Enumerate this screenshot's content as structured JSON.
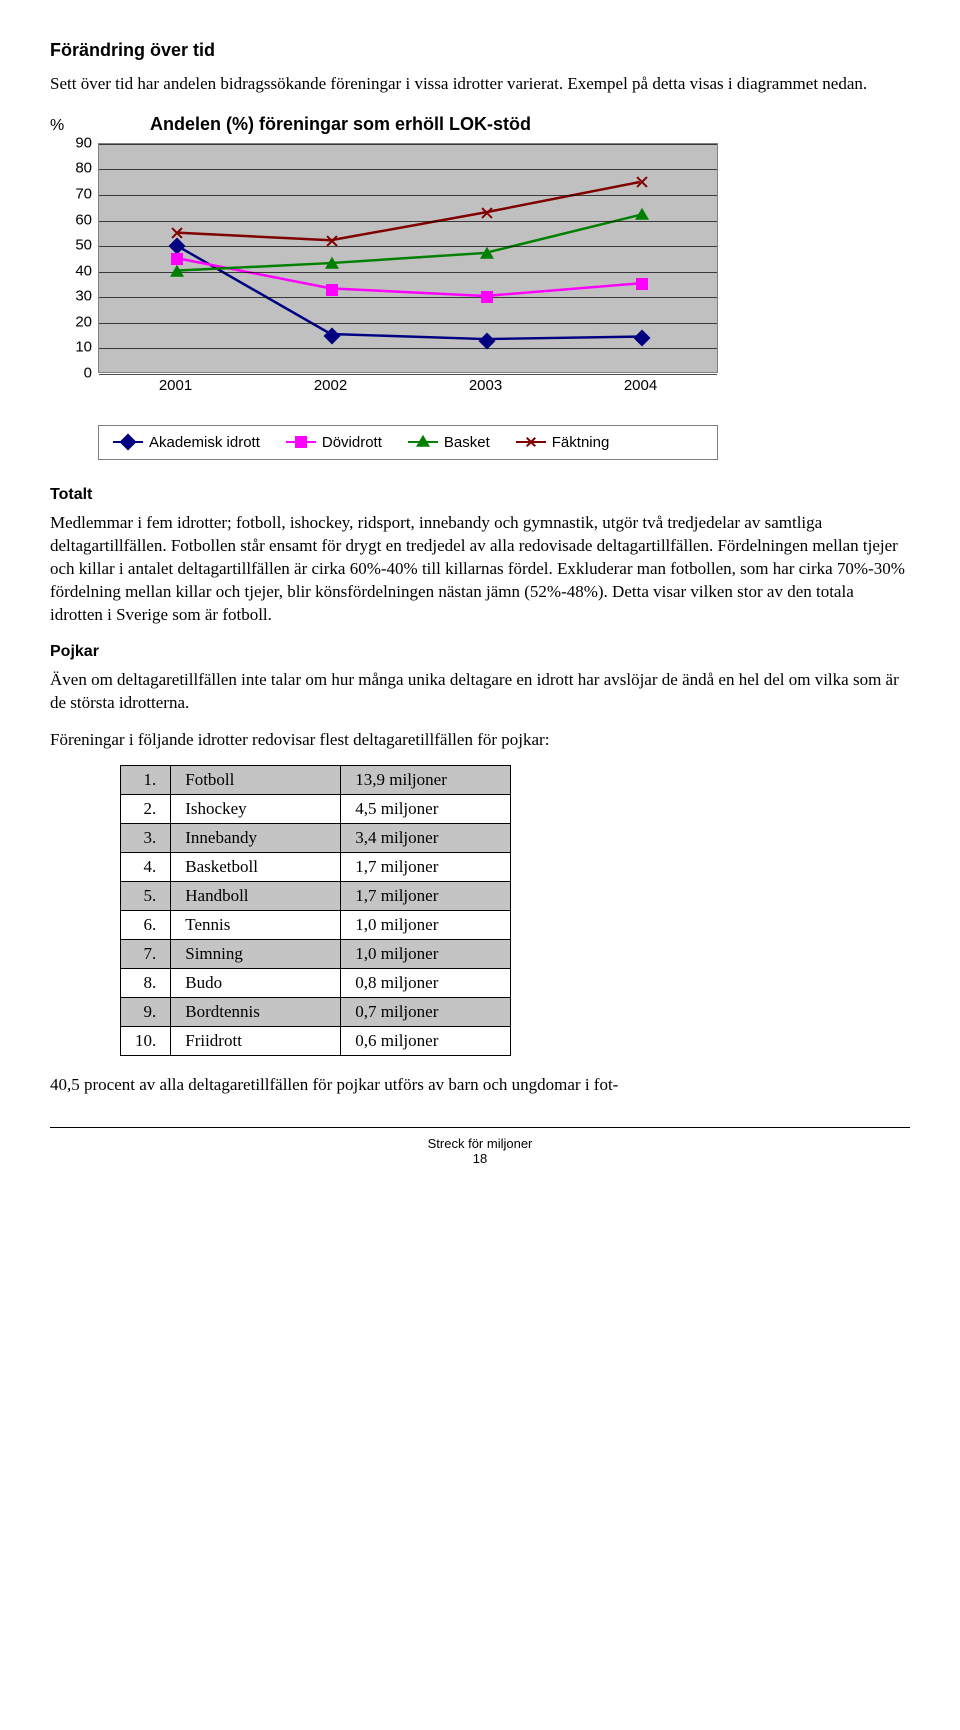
{
  "heading": "Förändring över tid",
  "intro": "Sett över tid har andelen bidragssökande föreningar i vissa idrotter varierat. Exempel på detta visas i diagrammet nedan.",
  "chart": {
    "type": "line",
    "percent_label": "%",
    "title": "Andelen (%) föreningar som erhöll LOK-stöd",
    "ylim": [
      0,
      90
    ],
    "ytick_step": 10,
    "yticks": [
      0,
      10,
      20,
      30,
      40,
      50,
      60,
      70,
      80,
      90
    ],
    "categories": [
      "2001",
      "2002",
      "2003",
      "2004"
    ],
    "plot_bg": "#c0c0c0",
    "grid_color": "#000000",
    "series": [
      {
        "name": "Akademisk idrott",
        "color": "#000080",
        "marker": "diamond",
        "values": [
          50,
          15,
          13,
          14
        ]
      },
      {
        "name": "Dövidrott",
        "color": "#ff00ff",
        "marker": "square",
        "values": [
          45,
          33,
          30,
          35
        ]
      },
      {
        "name": "Basket",
        "color": "#008000",
        "marker": "triangle",
        "values": [
          40,
          43,
          47,
          62
        ]
      },
      {
        "name": "Fäktning",
        "color": "#800000",
        "marker": "x",
        "values": [
          55,
          52,
          63,
          75
        ]
      }
    ]
  },
  "totalt_heading": "Totalt",
  "totalt_p": "Medlemmar i fem idrotter; fotboll, ishockey, ridsport, innebandy och gymnastik, utgör två tredjedelar av samtliga deltagartillfällen. Fotbollen står ensamt för drygt en tredjedel av alla redovisade deltagartillfällen. Fördelningen mellan tjejer och killar i antalet deltagartillfällen är cirka 60%-40% till killarnas fördel. Exkluderar man fotbollen, som har cirka 70%-30% fördelning mellan killar och tjejer, blir könsfördelningen nästan jämn (52%-48%). Detta visar vilken stor av den totala idrotten i Sverige som är fotboll.",
  "pojkar_heading": "Pojkar",
  "pojkar_p": "Även om deltagaretillfällen inte talar om hur många unika deltagare en idrott har avslöjar de ändå en hel del om vilka som är de största idrotterna.",
  "pojkar_lead": "Föreningar i följande idrotter redovisar flest deltagaretillfällen för pojkar:",
  "table_rows": [
    [
      "1.",
      "Fotboll",
      "13,9 miljoner"
    ],
    [
      "2.",
      "Ishockey",
      "4,5 miljoner"
    ],
    [
      "3.",
      "Innebandy",
      "3,4 miljoner"
    ],
    [
      "4.",
      "Basketboll",
      "1,7 miljoner"
    ],
    [
      "5.",
      "Handboll",
      "1,7 miljoner"
    ],
    [
      "6.",
      "Tennis",
      "1,0 miljoner"
    ],
    [
      "7.",
      "Simning",
      "1,0 miljoner"
    ],
    [
      "8.",
      "Budo",
      "0,8 miljoner"
    ],
    [
      "9.",
      "Bordtennis",
      "0,7 miljoner"
    ],
    [
      "10.",
      "Friidrott",
      "0,6 miljoner"
    ]
  ],
  "closing": "40,5 procent av alla deltagaretillfällen för pojkar utförs av barn och ungdomar i fot-",
  "footer_title": "Streck för miljoner",
  "page_number": "18"
}
